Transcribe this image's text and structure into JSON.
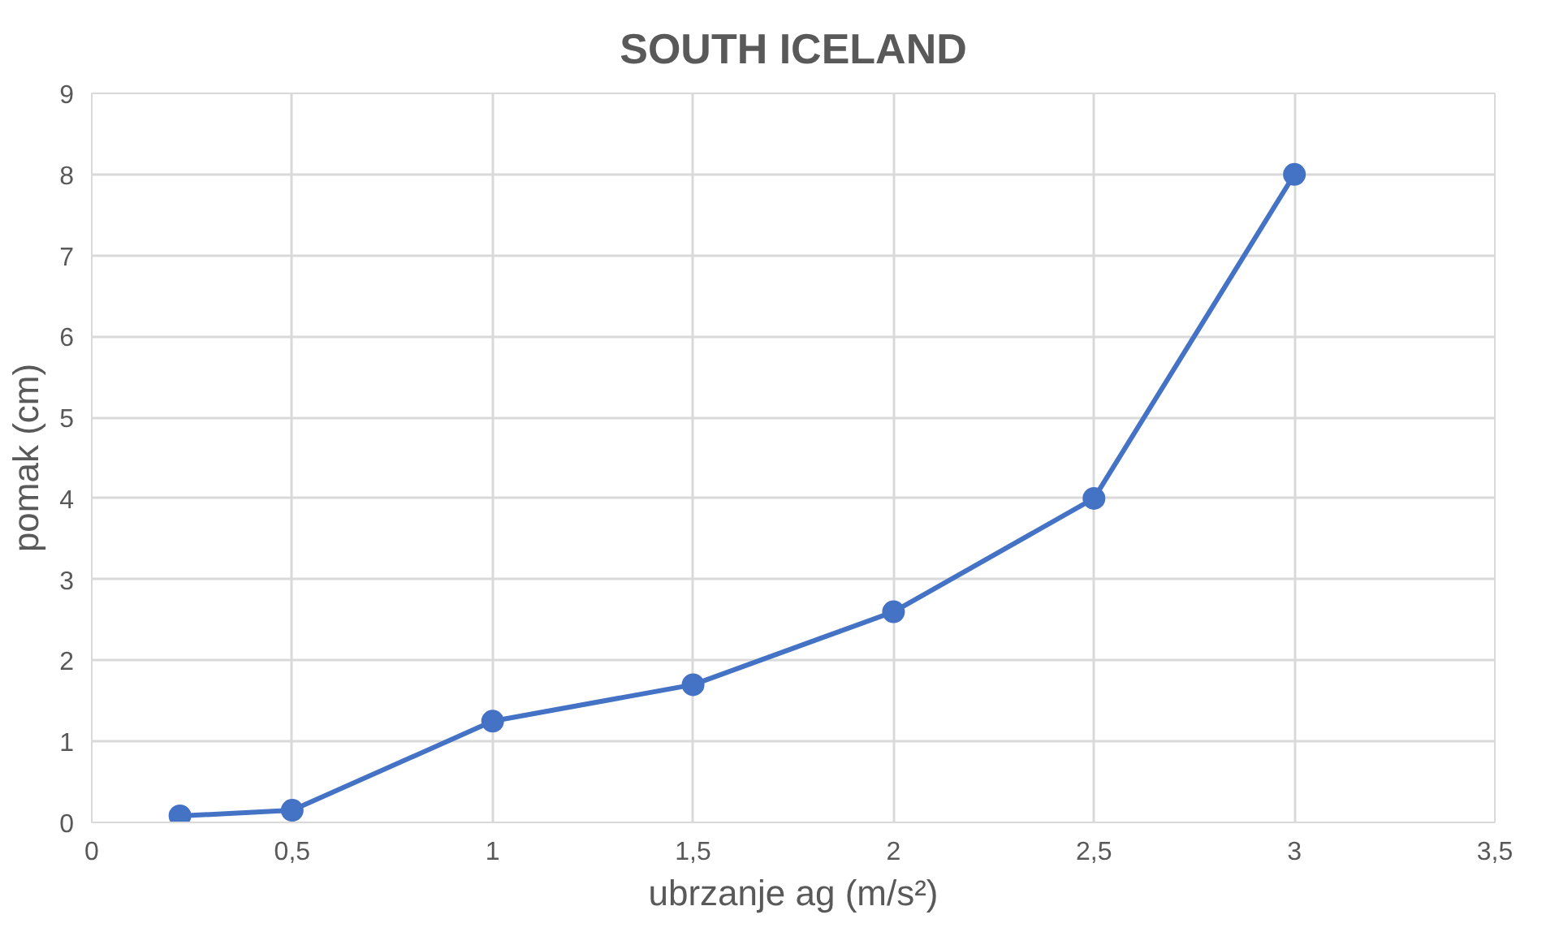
{
  "chart_data": {
    "type": "line",
    "title": "SOUTH ICELAND",
    "xlabel": "ubrzanje ag (m/s²)",
    "ylabel": "pomak (cm)",
    "x": [
      0.22,
      0.5,
      1,
      1.5,
      2,
      2.5,
      3
    ],
    "series": [
      {
        "color": "#4472c4",
        "values": [
          0.08,
          0.15,
          1.25,
          1.7,
          2.6,
          4.0,
          8.0
        ]
      }
    ],
    "xlim": [
      0,
      3.5
    ],
    "xticks": [
      0,
      {
        "value": 0.5,
        "label": "0,5"
      },
      1,
      {
        "value": 1.5,
        "label": "1,5"
      },
      2,
      {
        "value": 2.5,
        "label": "2,5"
      },
      3,
      {
        "value": 3.5,
        "label": "3,5"
      }
    ],
    "ylim": [
      0,
      9
    ],
    "yticks": [
      0,
      1,
      2,
      3,
      4,
      5,
      6,
      7,
      8,
      9
    ],
    "grid": true,
    "marker": "circle",
    "line_style": "solid"
  }
}
